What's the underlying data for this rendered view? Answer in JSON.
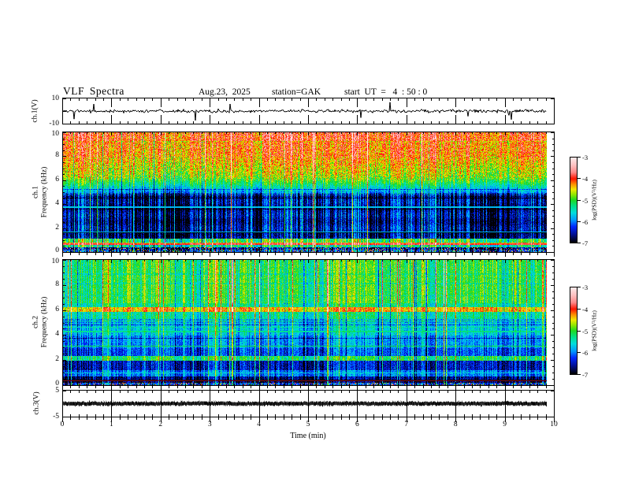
{
  "header": {
    "title": "VLF  Spectra",
    "date": "Aug.23,  2025",
    "station": "station=GAK",
    "start_ut": "start  UT  =   4  : 50 : 0"
  },
  "y_axes": {
    "ch1_wave": {
      "label": "ch.1(V)",
      "range": [
        -10,
        10
      ],
      "ticks": [
        {
          "v": 10,
          "t": "10"
        },
        {
          "v": -10,
          "t": "-10"
        }
      ]
    },
    "ch1_spec": {
      "label_line1": "ch.1",
      "label_line2": "Frequency  (kHz)",
      "range": [
        0,
        10
      ],
      "ticks": [
        "10",
        "8",
        "6",
        "4",
        "2",
        "0"
      ],
      "minor_step_khz": 0.5
    },
    "ch2_spec": {
      "label_line1": "ch.2",
      "label_line2": "Frequency  (kHz)",
      "range": [
        0,
        10
      ],
      "ticks": [
        "10",
        "8",
        "6",
        "4",
        "2",
        "0"
      ],
      "minor_step_khz": 0.5
    },
    "ch3": {
      "label": "ch.3(V)",
      "range": [
        -5,
        5
      ],
      "ticks": [
        {
          "v": 5,
          "t": "5"
        },
        {
          "v": -5,
          "t": "-5"
        }
      ]
    }
  },
  "x_axis": {
    "label": "Time  (min)",
    "ticks": [
      "0",
      "1",
      "2",
      "3",
      "4",
      "5",
      "6",
      "7",
      "8",
      "9",
      "10"
    ],
    "minor_divisions_per_major": 6,
    "range_min": [
      0,
      10
    ],
    "data_extent_min": [
      0,
      9.84
    ]
  },
  "colorbars": [
    {
      "label": "log(PSD)(V²/Hz)",
      "ticks": [
        "-3",
        "-4",
        "-5",
        "-6",
        "-7"
      ],
      "range": [
        -3,
        -7
      ]
    },
    {
      "label": "log(PSD)(V²/Hz)",
      "ticks": [
        "-3",
        "-4",
        "-5",
        "-6",
        "-7"
      ],
      "range": [
        -3,
        -7
      ]
    }
  ],
  "colormap": [
    {
      "v": -3.0,
      "c": "#ffeaea"
    },
    {
      "v": -3.35,
      "c": "#ffc2c2"
    },
    {
      "v": -3.7,
      "c": "#ff8888"
    },
    {
      "v": -4.0,
      "c": "#ff1400"
    },
    {
      "v": -4.25,
      "c": "#ff8c00"
    },
    {
      "v": -4.5,
      "c": "#f0e800"
    },
    {
      "v": -4.75,
      "c": "#8ce600"
    },
    {
      "v": -5.0,
      "c": "#1dd820"
    },
    {
      "v": -5.3,
      "c": "#00e08c"
    },
    {
      "v": -5.6,
      "c": "#00dcdc"
    },
    {
      "v": -5.95,
      "c": "#0096ff"
    },
    {
      "v": -6.25,
      "c": "#0028ff"
    },
    {
      "v": -6.6,
      "c": "#000f96"
    },
    {
      "v": -7.0,
      "c": "#000000"
    }
  ],
  "chart_data": [
    {
      "type": "line",
      "name": "ch1_waveform",
      "ylabel": "ch.1(V)",
      "xlim": [
        0,
        10
      ],
      "ylim": [
        -10,
        10
      ],
      "description": "Broadband noise trace centred on 0 V, ~±1.5 V peak-to-peak, with impulsive spikes reaching ±9 V",
      "seed": 5,
      "noise_sigma": 1.0,
      "spike_probability": 0.018,
      "spike_amplitude": [
        2.5,
        9
      ]
    },
    {
      "type": "heatmap",
      "name": "ch1_spectrogram",
      "ylabel": "Frequency (kHz)",
      "zlabel": "log(PSD)(V²/Hz)",
      "xlim": [
        0,
        10
      ],
      "ylim": [
        0,
        10
      ],
      "zlim": [
        -7,
        -3
      ],
      "seed": 11,
      "noise": 0.3,
      "streak_split_khz": 5,
      "streak_gain_high": 0.8,
      "streak_gain_low": 1.35,
      "strong_line_probability": 0.045,
      "dark_column_probability": 0.05,
      "band_profile": [
        {
          "f": [
            9.3,
            10.01
          ],
          "level": -3.95
        },
        {
          "f": [
            8.0,
            9.3
          ],
          "level": -4.15
        },
        {
          "f": [
            6.3,
            8.0
          ],
          "from": -4.7,
          "to": -4.25
        },
        {
          "f": [
            5.6,
            6.3
          ],
          "from": -5.3,
          "to": -4.7
        },
        {
          "f": [
            4.8,
            5.6
          ],
          "from": -6.1,
          "to": -5.3
        },
        {
          "f": [
            1.15,
            4.8
          ],
          "level": -6.45,
          "banding": -0.22
        },
        {
          "f": [
            0.85,
            1.15
          ],
          "level": -5.05
        },
        {
          "f": [
            0.6,
            0.85
          ],
          "level": -4.2
        },
        {
          "f": [
            0.45,
            0.6
          ],
          "level": -5.3
        },
        {
          "f": [
            0.25,
            0.45
          ],
          "level": -6.6,
          "speckle": 0.18
        },
        {
          "f": [
            0.0,
            0.25
          ],
          "level": -6.3,
          "speckle": 0.3
        }
      ],
      "bright_lines": [
        {
          "f": 3.8,
          "level": -5.7
        },
        {
          "f": 1.7,
          "level": -5.75
        },
        {
          "f": 0.68,
          "level": -3.85
        }
      ],
      "marker_lines": []
    },
    {
      "type": "heatmap",
      "name": "ch2_spectrogram",
      "ylabel": "Frequency (kHz)",
      "zlabel": "log(PSD)(V²/Hz)",
      "xlim": [
        0,
        10
      ],
      "ylim": [
        0,
        10
      ],
      "zlim": [
        -7,
        -3
      ],
      "seed": 77,
      "noise": 0.28,
      "streak_split_khz": 6.5,
      "streak_gain_high": 1.0,
      "streak_gain_low": 0.85,
      "strong_line_probability": 0.05,
      "dark_column_probability": 0.07,
      "band_profile": [
        {
          "f": [
            6.6,
            10.01
          ],
          "level": -5.05
        },
        {
          "f": [
            6.25,
            6.6
          ],
          "level": -5.3
        },
        {
          "f": [
            5.85,
            6.25
          ],
          "level": -4.35,
          "dash": true
        },
        {
          "f": [
            5.0,
            5.85
          ],
          "level": -5.35
        },
        {
          "f": [
            4.0,
            5.0
          ],
          "level": -5.65
        },
        {
          "f": [
            3.0,
            4.0
          ],
          "level": -5.9
        },
        {
          "f": [
            2.35,
            3.0
          ],
          "level": -6.15
        },
        {
          "f": [
            1.95,
            2.35
          ],
          "level": -5.15
        },
        {
          "f": [
            1.2,
            1.95
          ],
          "level": -6.45
        },
        {
          "f": [
            0.75,
            1.2
          ],
          "level": -6.0
        },
        {
          "f": [
            0.45,
            0.75
          ],
          "level": -6.65
        },
        {
          "f": [
            0.25,
            0.45
          ],
          "level": -6.8
        },
        {
          "f": [
            0.0,
            0.25
          ],
          "level": -6.3,
          "speckle": 0.3
        }
      ],
      "bright_lines": [
        {
          "f": 4.65,
          "level": -5.35
        },
        {
          "f": 4.3,
          "level": -5.3
        },
        {
          "f": 3.15,
          "level": -5.15
        },
        {
          "f": 1.0,
          "level": -5.6
        }
      ],
      "marker_lines": [
        {
          "f": 0.38,
          "color": "#7d1020"
        }
      ]
    },
    {
      "type": "line",
      "name": "ch3_waveform",
      "ylabel": "ch.3(V)",
      "xlim": [
        0,
        10
      ],
      "ylim": [
        -5,
        5
      ],
      "description": "Constant level ≈ 0 V drawn as a thick dark band",
      "seed": 9,
      "value": 0,
      "band_halfwidth_v": 0.7
    }
  ]
}
